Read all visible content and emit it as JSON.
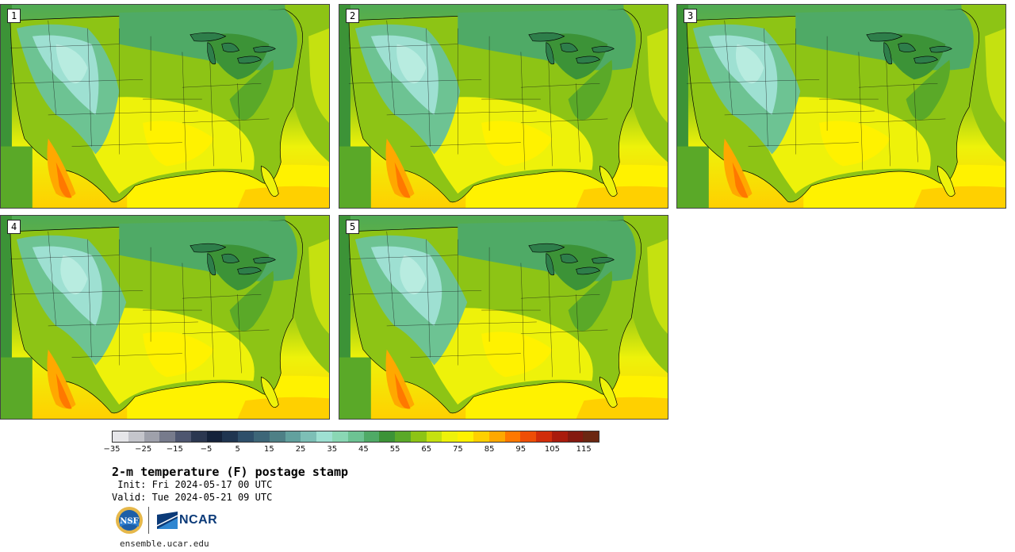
{
  "stamps": [
    {
      "label": "1",
      "variant": 0
    },
    {
      "label": "2",
      "variant": 1
    },
    {
      "label": "3",
      "variant": 2
    },
    {
      "label": "4",
      "variant": 3
    },
    {
      "label": "5",
      "variant": 4
    }
  ],
  "colorbar": {
    "colors": [
      "#e6e6e9",
      "#c4c5cb",
      "#9fa1ab",
      "#777b8c",
      "#4e5670",
      "#2b3750",
      "#14223a",
      "#1f3550",
      "#2e4f6a",
      "#3d6678",
      "#4e8086",
      "#62a19e",
      "#7dbfb6",
      "#9ee0d2",
      "#8ad7b4",
      "#6dc393",
      "#4faa66",
      "#3c9337",
      "#5aa928",
      "#8dc415",
      "#c5e110",
      "#eef20a",
      "#fff200",
      "#ffd000",
      "#ffa800",
      "#ff7800",
      "#ee4e06",
      "#d12d0a",
      "#a91b0c",
      "#84190f",
      "#6b2712"
    ],
    "ticks": [
      "−35",
      "−25",
      "−15",
      "−5",
      "5",
      "15",
      "25",
      "35",
      "45",
      "55",
      "65",
      "75",
      "85",
      "95",
      "105",
      "115"
    ]
  },
  "title": "2-m temperature (F) postage stamp",
  "init": " Init: Fri 2024-05-17 00 UTC",
  "valid": "Valid: Tue 2024-05-21 09 UTC",
  "logos": {
    "nsf": "NSF",
    "ncar": "NCAR"
  },
  "site": "ensemble.ucar.edu"
}
